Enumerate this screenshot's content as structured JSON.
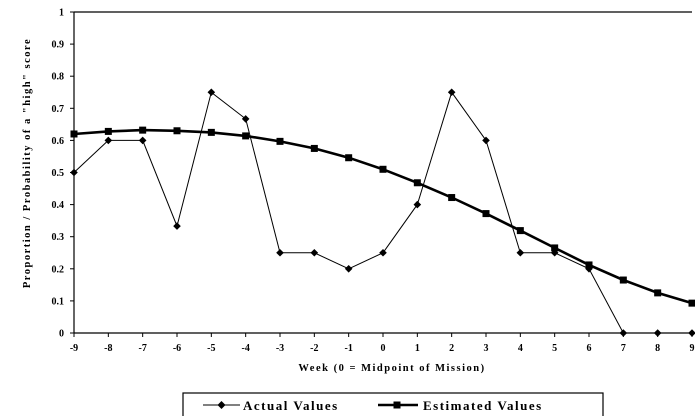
{
  "chart_data": {
    "type": "line",
    "title": "",
    "xlabel": "Week (0 = Midpoint of Mission)",
    "ylabel": "Proportion / Probability of a \"high\" score",
    "x": [
      -9,
      -8,
      -7,
      -6,
      -5,
      -4,
      -3,
      -2,
      -1,
      0,
      1,
      2,
      3,
      4,
      5,
      6,
      7,
      8,
      9
    ],
    "xlim": [
      -9,
      9
    ],
    "ylim": [
      0,
      1
    ],
    "yticks": [
      "0",
      "0.1",
      "0.2",
      "0.3",
      "0.4",
      "0.5",
      "0.6",
      "0.7",
      "0.8",
      "0.9",
      "1"
    ],
    "xticks": [
      "-9",
      "-8",
      "-7",
      "-6",
      "-5",
      "-4",
      "-3",
      "-2",
      "-1",
      "0",
      "1",
      "2",
      "3",
      "4",
      "5",
      "6",
      "7",
      "8",
      "9"
    ],
    "grid": false,
    "legend_position": "bottom",
    "series": [
      {
        "name": "Actual Values",
        "marker": "diamond",
        "values": [
          0.5,
          0.6,
          0.6,
          0.333,
          0.75,
          0.667,
          0.25,
          0.25,
          0.2,
          0.25,
          0.4,
          0.75,
          0.6,
          0.25,
          0.25,
          0.2,
          0,
          0,
          0
        ]
      },
      {
        "name": "Estimated Values",
        "marker": "square",
        "values": [
          0.62,
          0.628,
          0.632,
          0.63,
          0.625,
          0.614,
          0.597,
          0.575,
          0.546,
          0.51,
          0.468,
          0.422,
          0.372,
          0.319,
          0.265,
          0.212,
          0.165,
          0.125,
          0.093
        ]
      }
    ]
  }
}
